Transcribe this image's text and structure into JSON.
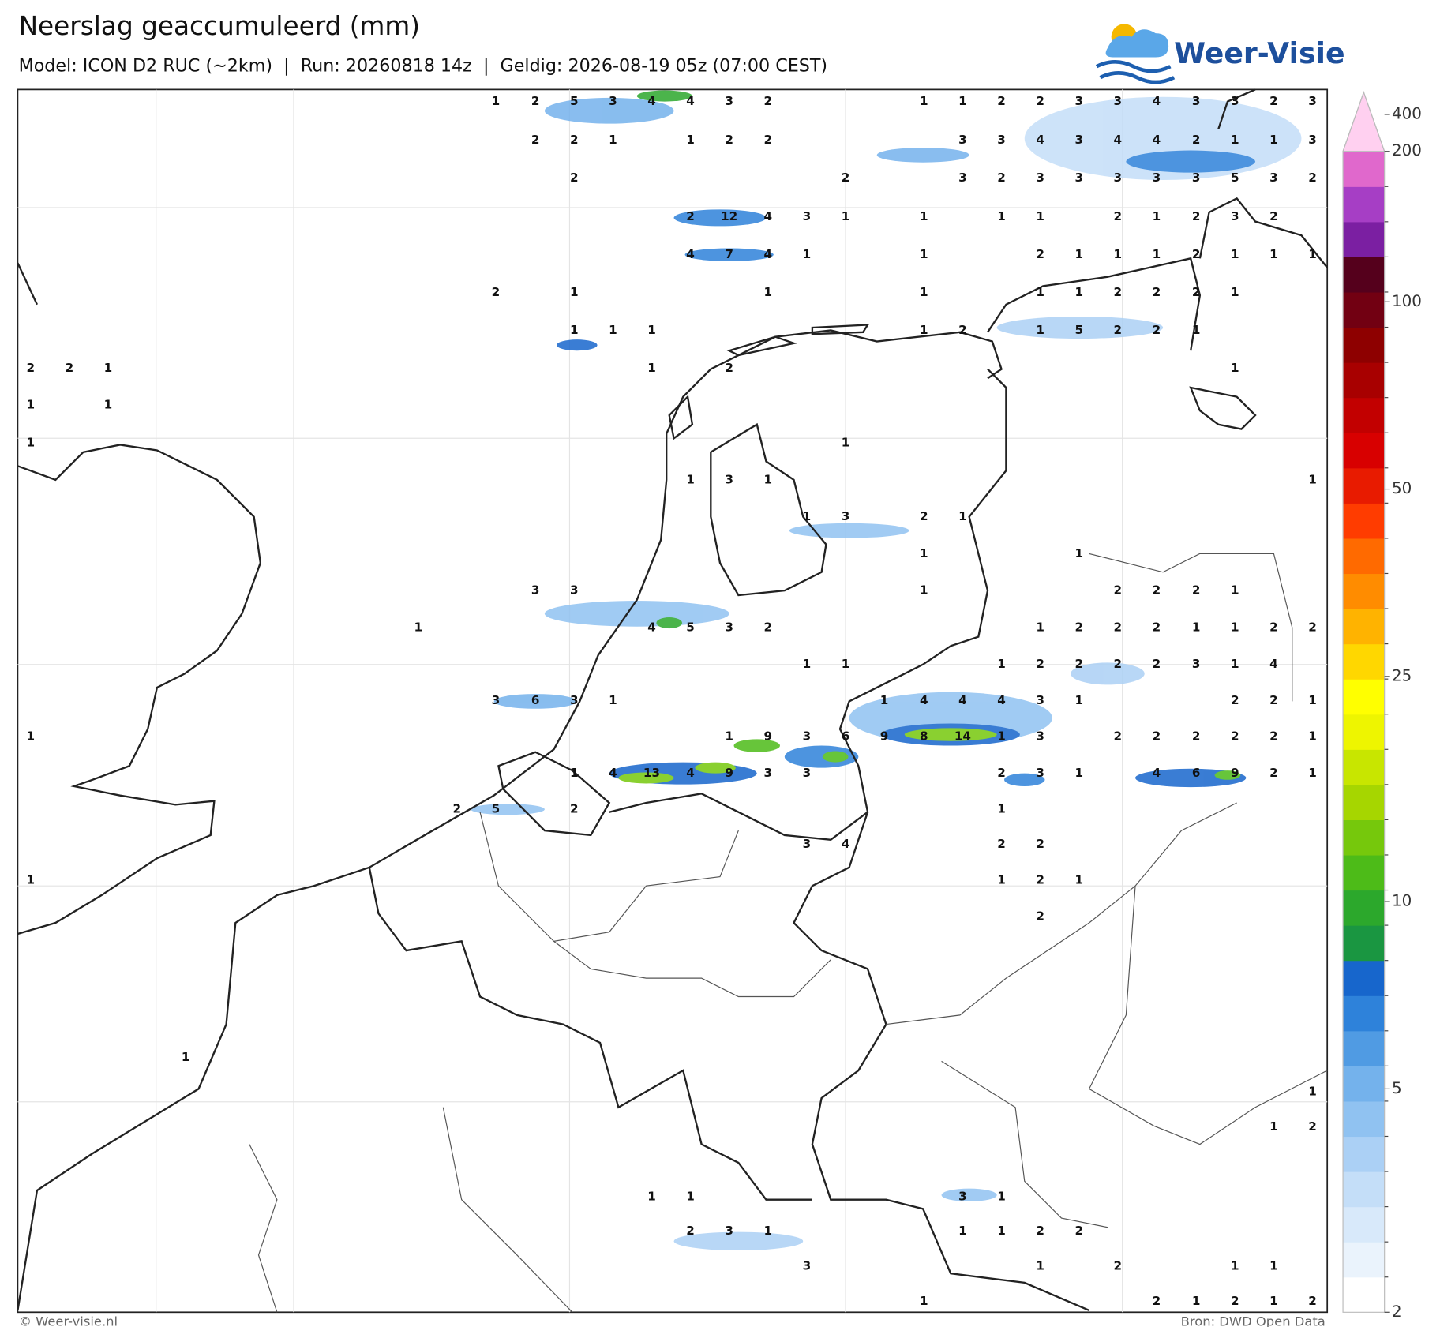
{
  "header": {
    "title": "Neerslag geaccumuleerd (mm)",
    "subtitle": "Model: ICON D2 RUC (~2km)  |  Run: 20260818 14z  |  Geldig: 2026-08-19 05z (07:00 CEST)",
    "logo": "Weer-Visie"
  },
  "map": {
    "labels": [
      [
        1,
        2,
        5,
        3,
        4,
        4,
        3,
        2,
        1,
        1,
        2,
        2,
        3,
        3,
        4,
        3,
        3,
        2,
        3
      ],
      [
        2,
        2,
        1,
        1,
        2,
        2,
        3,
        3,
        4,
        3,
        4,
        4,
        2,
        1,
        1,
        3
      ],
      [
        2,
        2,
        3,
        2,
        3,
        3,
        3,
        3,
        3,
        5,
        3,
        2
      ],
      [
        2,
        12,
        4,
        3,
        1,
        1,
        1,
        1,
        2,
        1,
        2,
        3,
        2
      ],
      [
        4,
        7,
        4,
        1,
        1,
        2,
        1,
        1,
        1,
        2,
        1,
        1,
        1
      ],
      [
        2,
        1,
        1,
        1,
        1,
        1,
        2,
        2,
        2,
        1
      ],
      [
        1,
        1,
        1,
        1,
        2,
        1,
        5,
        2,
        2,
        1
      ],
      [
        2,
        2,
        1,
        1,
        2,
        1
      ],
      [
        1,
        1
      ],
      [
        1,
        1
      ],
      [
        1,
        3,
        1,
        1
      ],
      [
        1,
        3,
        2,
        1
      ],
      [
        1,
        1
      ],
      [
        3,
        3,
        1,
        2,
        2,
        2,
        1
      ],
      [
        1,
        4,
        5,
        3,
        2,
        1,
        2,
        2,
        2,
        1,
        1,
        2,
        2
      ],
      [
        1,
        1,
        1,
        2,
        2,
        2,
        2,
        3,
        1,
        4
      ],
      [
        3,
        6,
        3,
        1,
        1,
        4,
        4,
        4,
        3,
        1,
        2,
        2,
        1
      ],
      [
        1,
        1,
        9,
        3,
        6,
        9,
        8,
        14,
        1,
        3,
        2,
        2,
        2,
        2,
        2,
        1
      ],
      [
        1,
        4,
        13,
        4,
        9,
        3,
        3,
        2,
        3,
        1,
        4,
        6,
        9,
        2,
        1
      ],
      [
        2,
        5,
        2,
        1
      ],
      [
        3,
        4,
        2,
        2
      ],
      [
        1,
        1,
        2,
        1
      ],
      [
        2
      ],
      [
        1
      ],
      [
        1
      ],
      [
        1,
        2
      ],
      [
        1,
        1,
        3,
        1
      ],
      [
        2,
        3,
        1,
        1,
        1,
        2,
        2
      ],
      [
        3,
        1,
        2,
        1,
        1
      ],
      [
        1,
        2,
        1,
        2,
        1,
        2
      ]
    ]
  },
  "colorbar": {
    "ticks": [
      2,
      5,
      10,
      25,
      50,
      100,
      200,
      400
    ],
    "colors": [
      "#ffffff",
      "#eaf3fc",
      "#d8e9fa",
      "#c4def8",
      "#abd0f5",
      "#90c2f1",
      "#74b2ec",
      "#509be3",
      "#2e82da",
      "#1766cc",
      "#1a9641",
      "#2ca82c",
      "#4dbb18",
      "#76c80c",
      "#a6d600",
      "#c8e600",
      "#eef500",
      "#ffff00",
      "#ffd700",
      "#ffb300",
      "#ff8c00",
      "#ff6a00",
      "#ff3c00",
      "#e81b00",
      "#d80000",
      "#c20000",
      "#a80000",
      "#8e0000",
      "#720012",
      "#55001c",
      "#7b1fa2",
      "#a63ec5",
      "#e068cc",
      "#ffd0f0"
    ]
  },
  "footer": {
    "left": "© Weer-visie.nl",
    "right": "Bron: DWD Open Data"
  }
}
